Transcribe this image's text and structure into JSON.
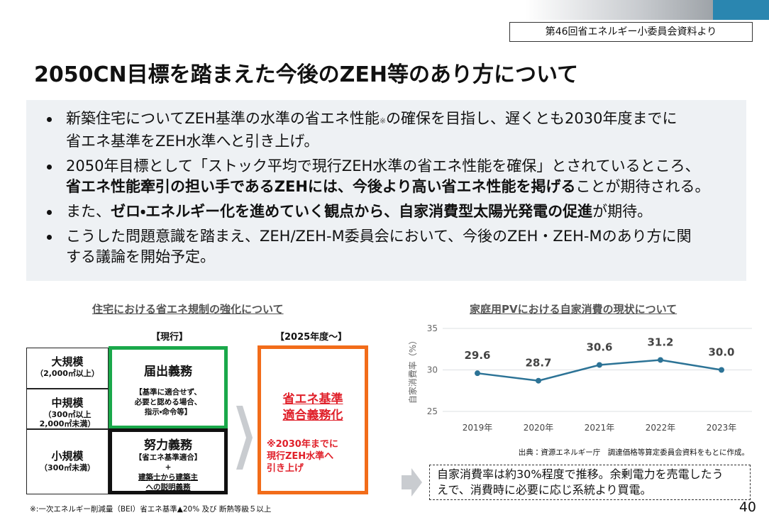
{
  "header": {
    "source_note": "第46回省エネルギー小委員会資料より",
    "title": "2050CN目標を踏まえた今後のZEH等のあり方について"
  },
  "bullets": [
    [
      {
        "text": "新築住宅についてZEH基準の水準の省エネ性能"
      },
      {
        "text": "※",
        "small": true
      },
      {
        "text": "の確保を目指し、遅くとも2030年度までに\n省エネ基準をZEH水準へと引き上げ。"
      }
    ],
    [
      {
        "text": "2050年目標として「ストック平均で現行ZEH水準の省エネ性能を確保」とされているところ、\n"
      },
      {
        "text": "省エネ性能牽引の担い手であるZEHには、今後より高い省エネ性能を掲げる",
        "bold": true
      },
      {
        "text": "ことが期待される。"
      }
    ],
    [
      {
        "text": "また、"
      },
      {
        "text": "ゼロ・エネルギー化を進めていく観点から、自家消費型太陽光発電の促進",
        "bold": true
      },
      {
        "text": "が期待。"
      }
    ],
    [
      {
        "text": "こうした問題意識を踏まえ、ZEH/ZEH-M委員会において、今後のZEH・ZEH-Mのあり方に関\nする議論を開始予定。"
      }
    ]
  ],
  "regulation": {
    "title": "住宅における省エネ規制の強化について",
    "current_label": "【現行】",
    "future_label": "【2025年度～】",
    "sizes": [
      {
        "name": "大規模",
        "detail": [
          "（2,000㎡以上）"
        ]
      },
      {
        "name": "中規模",
        "detail": [
          "（300㎡以上",
          "2,000㎡未満）"
        ]
      },
      {
        "name": "小規模",
        "detail": [
          "（300㎡未満）"
        ]
      }
    ],
    "duty_report": {
      "title": "届出義務",
      "lines": [
        "【基準に適合せず、",
        "必要と認める場合、",
        "指示・命令等】"
      ]
    },
    "duty_effort": {
      "title": "努力義務",
      "lines": [
        "【省エネ基準適合】",
        "+",
        "建築士から建築主",
        "への説明義務"
      ]
    },
    "future": {
      "title": [
        "省エネ基準",
        "適合義務化"
      ],
      "note": [
        "※2030年までに",
        "現行ZEH水準へ",
        "引き上げ"
      ]
    }
  },
  "chart_data": {
    "type": "line",
    "title": "家庭用PVにおける自家消費の現状について",
    "ylabel": "自家消費率（%）",
    "categories": [
      "2019年",
      "2020年",
      "2021年",
      "2022年",
      "2023年"
    ],
    "values": [
      29.6,
      28.7,
      30.6,
      31.2,
      30.0
    ],
    "value_labels": [
      "29.6",
      "28.7",
      "30.6",
      "31.2",
      "30.0"
    ],
    "color": "#2c7396",
    "ylim": [
      25,
      35
    ],
    "yticks": [
      25,
      30,
      35
    ],
    "grid": true,
    "source": "出典：資源エネルギー庁　調達価格等算定委員会資料をもとに作成。"
  },
  "summary": [
    "自家消費率は約30%程度で推移。余剰電力を売電したう",
    "えで、消費時に必要に応じ系統より買電。"
  ],
  "footnote": "※:一次エネルギー削減量（BEI）省エネ基準▲20% 及び 断熱等級５以上",
  "page_number": "40"
}
